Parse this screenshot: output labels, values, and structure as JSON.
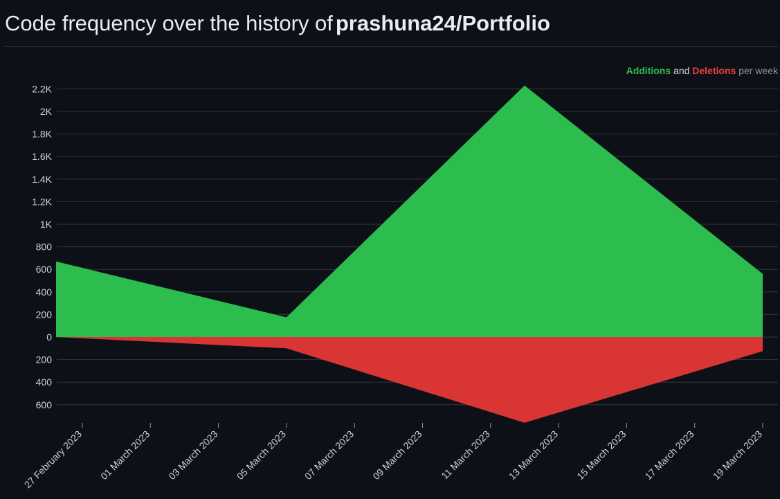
{
  "header": {
    "title_prefix": "Code frequency over the history of",
    "repo_name": "prashuna24/Portfolio"
  },
  "legend": {
    "additions": "Additions",
    "and": "and",
    "deletions": "Deletions",
    "suffix": "per week"
  },
  "colors": {
    "additions": "#2dbd4e",
    "deletions": "#d93535",
    "grid": "#30363d",
    "background": "#0d1117"
  },
  "chart_data": {
    "type": "area",
    "x_ticks": [
      "27 February 2023",
      "01 March 2023",
      "03 March 2023",
      "05 March 2023",
      "07 March 2023",
      "09 March 2023",
      "11 March 2023",
      "13 March 2023",
      "15 March 2023",
      "17 March 2023",
      "19 March 2023"
    ],
    "y_ticks": [
      {
        "value": 2200,
        "label": "2.2K"
      },
      {
        "value": 2000,
        "label": "2K"
      },
      {
        "value": 1800,
        "label": "1.8K"
      },
      {
        "value": 1600,
        "label": "1.6K"
      },
      {
        "value": 1400,
        "label": "1.4K"
      },
      {
        "value": 1200,
        "label": "1.2K"
      },
      {
        "value": 1000,
        "label": "1K"
      },
      {
        "value": 800,
        "label": "800"
      },
      {
        "value": 600,
        "label": "600"
      },
      {
        "value": 400,
        "label": "400"
      },
      {
        "value": 200,
        "label": "200"
      },
      {
        "value": 0,
        "label": "0"
      },
      {
        "value": -200,
        "label": "200"
      },
      {
        "value": -400,
        "label": "400"
      },
      {
        "value": -600,
        "label": "600"
      }
    ],
    "x": [
      "2023-02-26",
      "2023-03-05",
      "2023-03-12",
      "2023-03-19"
    ],
    "series": [
      {
        "name": "Additions",
        "values": [
          670,
          175,
          2230,
          560
        ]
      },
      {
        "name": "Deletions",
        "values": [
          0,
          -100,
          -760,
          -125
        ]
      }
    ],
    "x_range": [
      "2023-02-26",
      "2023-03-19"
    ],
    "ylim": [
      -700,
      2250
    ],
    "grid": true,
    "legend_position": "top-right"
  }
}
